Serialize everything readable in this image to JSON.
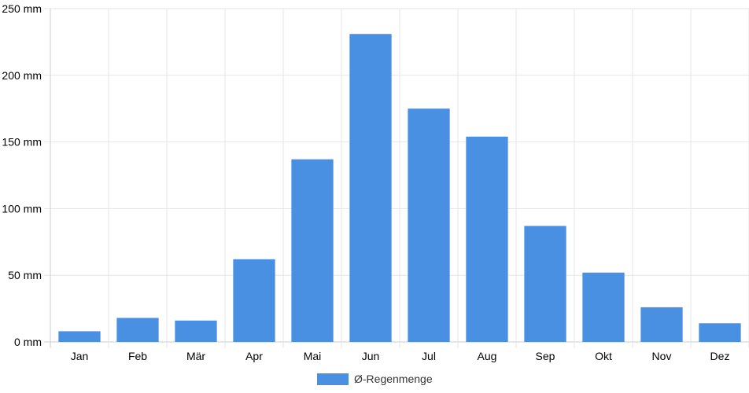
{
  "chart_data": {
    "type": "bar",
    "categories": [
      "Jan",
      "Feb",
      "Mär",
      "Apr",
      "Mai",
      "Jun",
      "Jul",
      "Aug",
      "Sep",
      "Okt",
      "Nov",
      "Dez"
    ],
    "series": [
      {
        "name": "Ø-Regenmenge",
        "color": "#4a90e2",
        "values": [
          8,
          18,
          16,
          62,
          137,
          231,
          175,
          154,
          87,
          52,
          26,
          14
        ]
      }
    ],
    "y_ticks": [
      "0 mm",
      "50 mm",
      "100 mm",
      "150 mm",
      "200 mm",
      "250 mm"
    ],
    "ylim": [
      0,
      250
    ],
    "grid": true,
    "legend_position": "bottom-center",
    "colors": {
      "bar": "#4a90e2",
      "grid": "#e6e6e6",
      "axis": "#cccccc"
    }
  }
}
